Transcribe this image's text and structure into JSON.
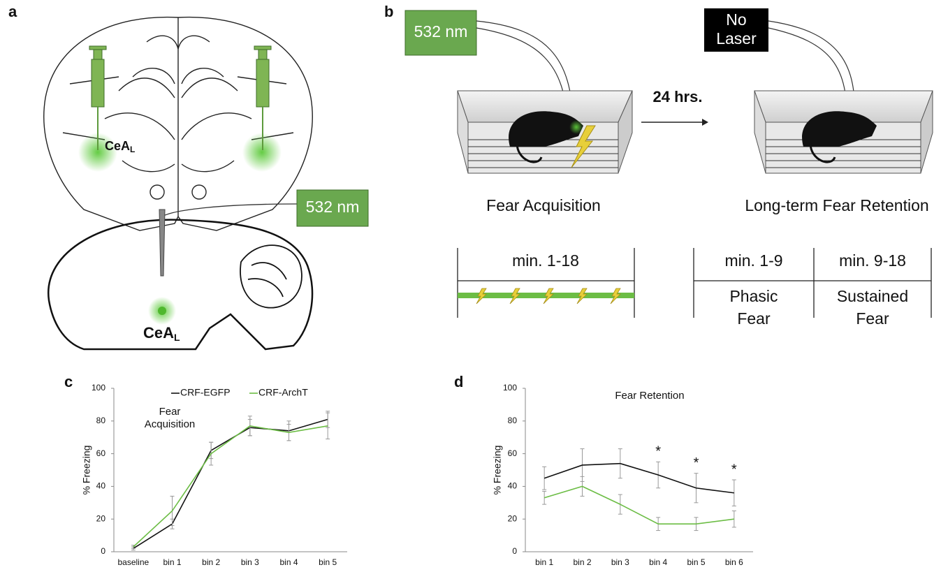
{
  "panel_a": {
    "label": "a",
    "region": "CeA",
    "region_sub": "L",
    "laser": "532 nm"
  },
  "panel_b": {
    "label": "b",
    "laser_on": "532 nm",
    "laser_off": [
      "No",
      "Laser"
    ],
    "interval": "24 hrs.",
    "session_1": "Fear Acquisition",
    "session_2": "Long-term Fear Retention",
    "session_1_window": "min. 1-18",
    "session_2_windows": [
      "min. 1-9",
      "min. 9-18"
    ],
    "phase_1": [
      "Phasic",
      "Fear"
    ],
    "phase_2": [
      "Sustained",
      "Fear"
    ]
  },
  "chart_data": [
    {
      "type": "line",
      "panel": "c",
      "title": [
        "Fear",
        "Acquisition"
      ],
      "y_label": "% Freezing",
      "categories": [
        "baseline",
        "bin 1",
        "bin 2",
        "bin 3",
        "bin 4",
        "bin 5"
      ],
      "series": [
        {
          "name": "CRF-EGFP",
          "color": "#111111",
          "values": [
            2,
            17,
            62,
            76,
            74,
            81
          ],
          "errors": [
            1,
            3,
            5,
            5,
            6,
            5
          ]
        },
        {
          "name": "CRF-ArchT",
          "color": "#6cbd45",
          "values": [
            3,
            25,
            60,
            77,
            73,
            77
          ],
          "errors": [
            1,
            9,
            7,
            6,
            5,
            8
          ]
        }
      ],
      "ylim": [
        0,
        100
      ],
      "yticks": [
        0,
        20,
        40,
        60,
        80,
        100
      ],
      "legend": "top"
    },
    {
      "type": "line",
      "panel": "d",
      "title": [
        "Fear Retention"
      ],
      "y_label": "% Freezing",
      "categories": [
        "bin 1",
        "bin 2",
        "bin 3",
        "bin 4",
        "bin 5",
        "bin 6"
      ],
      "series": [
        {
          "color": "#111111",
          "values": [
            45,
            53,
            54,
            47,
            39,
            36
          ],
          "errors": [
            7,
            10,
            9,
            8,
            9,
            8
          ]
        },
        {
          "color": "#6cbd45",
          "values": [
            33,
            40,
            29,
            17,
            17,
            20
          ],
          "errors": [
            4,
            6,
            6,
            4,
            4,
            5
          ]
        }
      ],
      "significance": [
        null,
        null,
        null,
        "*",
        "*",
        "*"
      ],
      "ylim": [
        0,
        100
      ],
      "yticks": [
        0,
        20,
        40,
        60,
        80,
        100
      ]
    }
  ]
}
